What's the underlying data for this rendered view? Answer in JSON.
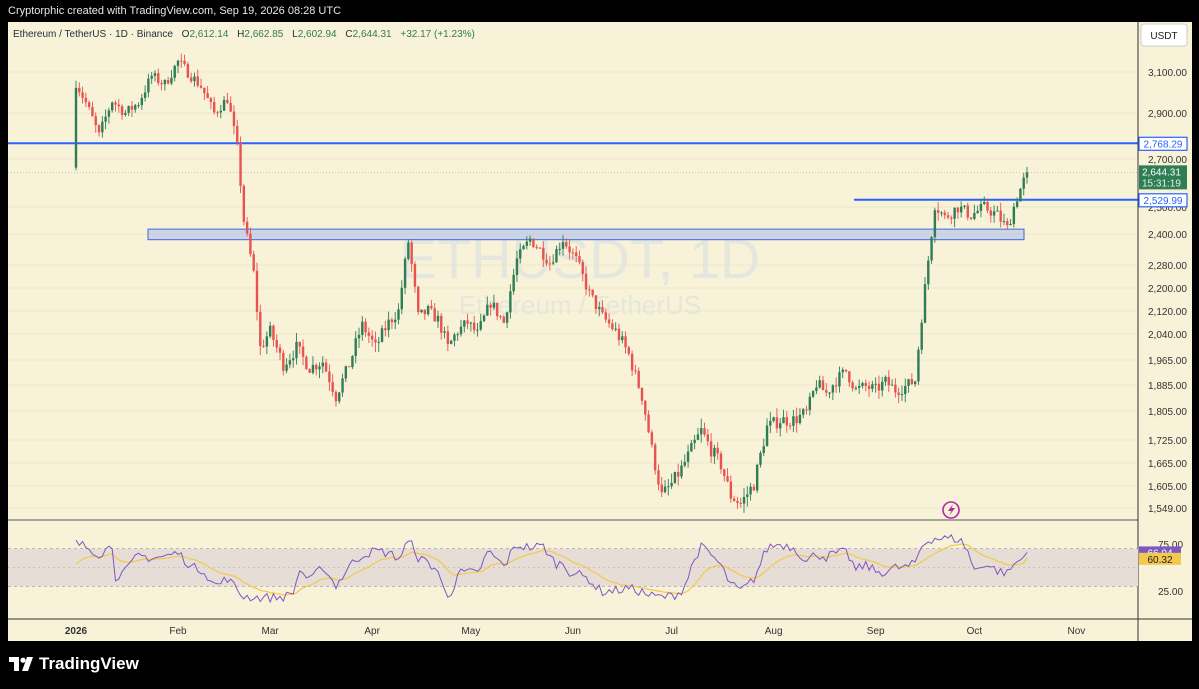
{
  "header": {
    "created_text": "Cryptorphic created with TradingView.com, Sep 19, 2026 08:28 UTC"
  },
  "legend": {
    "symbol": "Ethereum / TetherUS · 1D · Binance",
    "o_label": "O",
    "o_value": "2,612.14",
    "h_label": "H",
    "h_value": "2,662.85",
    "l_label": "L",
    "l_value": "2,602.94",
    "c_label": "C",
    "c_value": "2,644.31",
    "change": "+32.17 (+1.23%)"
  },
  "watermark": {
    "symbol": "ETHUSDT, 1D",
    "name": "Ethereum / TetherUS"
  },
  "currency_badge": "USDT",
  "colors": {
    "up": "#2e7d55",
    "down": "#e8524f",
    "level": "#2962ff",
    "rsi": "#7e57c2",
    "rsi_ma": "#f2c94c",
    "bg": "#f7f2d8"
  },
  "chart_data": {
    "type": "candlestick",
    "symbol": "ETHUSDT",
    "timeframe": "1D",
    "exchange": "Binance",
    "price_axis": {
      "labels": [
        "3,100.00",
        "2,900.00",
        "2,700.00",
        "2,500.00",
        "2,400.00",
        "2,280.00",
        "2,200.00",
        "2,120.00",
        "2,040.00",
        "1,965.00",
        "1,885.00",
        "1,805.00",
        "1,725.00",
        "1,665.00",
        "1,605.00",
        "1,549.00"
      ],
      "values": [
        3100,
        2900,
        2700,
        2500,
        2400,
        2280,
        2200,
        2120,
        2040,
        1965,
        1885,
        1805,
        1725,
        1665,
        1605,
        1549
      ]
    },
    "time_axis": {
      "labels": [
        "2026",
        "Feb",
        "Mar",
        "Apr",
        "May",
        "Jun",
        "Jul",
        "Aug",
        "Sep",
        "Oct",
        "Nov"
      ]
    },
    "price_tags": [
      {
        "label": "2,768.29",
        "value": 2768.29,
        "kind": "level"
      },
      {
        "label": "2,644.31",
        "value": 2644.31,
        "kind": "last",
        "sub": "15:31:19"
      },
      {
        "label": "2,529.99",
        "value": 2529.99,
        "kind": "level"
      }
    ],
    "horizontal_lines": [
      2768.29,
      2529.99
    ],
    "zone": {
      "top": 2418,
      "bottom": 2378
    },
    "anchors": [
      [
        "2026-01-01",
        3050
      ],
      [
        "2026-01-04",
        2950
      ],
      [
        "2026-01-08",
        2800
      ],
      [
        "2026-01-12",
        2960
      ],
      [
        "2026-01-16",
        2900
      ],
      [
        "2026-01-20",
        2950
      ],
      [
        "2026-01-24",
        3080
      ],
      [
        "2026-01-28",
        3040
      ],
      [
        "2026-02-01",
        3150
      ],
      [
        "2026-02-04",
        3100
      ],
      [
        "2026-02-08",
        3030
      ],
      [
        "2026-02-12",
        2900
      ],
      [
        "2026-02-16",
        2970
      ],
      [
        "2026-02-19",
        2750
      ],
      [
        "2026-02-21",
        2450
      ],
      [
        "2026-02-24",
        2250
      ],
      [
        "2026-02-26",
        2000
      ],
      [
        "2026-03-01",
        2050
      ],
      [
        "2026-03-05",
        1950
      ],
      [
        "2026-03-09",
        2000
      ],
      [
        "2026-03-13",
        1940
      ],
      [
        "2026-03-17",
        1960
      ],
      [
        "2026-03-21",
        1850
      ],
      [
        "2026-03-25",
        1950
      ],
      [
        "2026-03-29",
        2070
      ],
      [
        "2026-04-02",
        2000
      ],
      [
        "2026-04-06",
        2080
      ],
      [
        "2026-04-09",
        2120
      ],
      [
        "2026-04-12",
        2370
      ],
      [
        "2026-04-15",
        2100
      ],
      [
        "2026-04-18",
        2120
      ],
      [
        "2026-04-21",
        2090
      ],
      [
        "2026-04-24",
        2000
      ],
      [
        "2026-04-27",
        2050
      ],
      [
        "2026-04-30",
        2080
      ],
      [
        "2026-05-03",
        2040
      ],
      [
        "2026-05-07",
        2150
      ],
      [
        "2026-05-11",
        2080
      ],
      [
        "2026-05-15",
        2300
      ],
      [
        "2026-05-19",
        2380
      ],
      [
        "2026-05-22",
        2340
      ],
      [
        "2026-05-25",
        2290
      ],
      [
        "2026-05-29",
        2380
      ],
      [
        "2026-06-02",
        2300
      ],
      [
        "2026-06-06",
        2180
      ],
      [
        "2026-06-10",
        2100
      ],
      [
        "2026-06-14",
        2050
      ],
      [
        "2026-06-18",
        1980
      ],
      [
        "2026-06-22",
        1850
      ],
      [
        "2026-06-25",
        1700
      ],
      [
        "2026-06-28",
        1580
      ],
      [
        "2026-07-01",
        1610
      ],
      [
        "2026-07-04",
        1650
      ],
      [
        "2026-07-07",
        1700
      ],
      [
        "2026-07-10",
        1750
      ],
      [
        "2026-07-13",
        1700
      ],
      [
        "2026-07-16",
        1660
      ],
      [
        "2026-07-19",
        1580
      ],
      [
        "2026-07-22",
        1560
      ],
      [
        "2026-07-26",
        1610
      ],
      [
        "2026-07-30",
        1760
      ],
      [
        "2026-08-03",
        1780
      ],
      [
        "2026-08-07",
        1780
      ],
      [
        "2026-08-11",
        1800
      ],
      [
        "2026-08-14",
        1890
      ],
      [
        "2026-08-17",
        1860
      ],
      [
        "2026-08-20",
        1900
      ],
      [
        "2026-08-23",
        1930
      ],
      [
        "2026-08-26",
        1870
      ],
      [
        "2026-08-29",
        1880
      ],
      [
        "2026-09-01",
        1870
      ],
      [
        "2026-09-04",
        1895
      ],
      [
        "2026-09-07",
        1870
      ],
      [
        "2026-09-10",
        1880
      ],
      [
        "2026-09-13",
        1900
      ],
      [
        "2026-09-15",
        2100
      ],
      [
        "2026-09-17",
        2300
      ],
      [
        "2026-09-19",
        2510
      ],
      [
        "2026-09-22",
        2460
      ],
      [
        "2026-09-26",
        2500
      ],
      [
        "2026-09-30",
        2470
      ],
      [
        "2026-10-04",
        2500
      ],
      [
        "2026-10-08",
        2470
      ],
      [
        "2026-10-11",
        2420
      ],
      [
        "2026-10-14",
        2540
      ],
      [
        "2026-10-17",
        2644
      ]
    ],
    "rsi": {
      "period": 14,
      "value_label": "66.04",
      "value": 66.04,
      "ma_label": "60.32",
      "ma": 60.32,
      "axis_labels": [
        "75.00",
        "25.00"
      ],
      "axis_values": [
        75,
        25
      ],
      "bands": [
        70,
        30
      ]
    }
  }
}
